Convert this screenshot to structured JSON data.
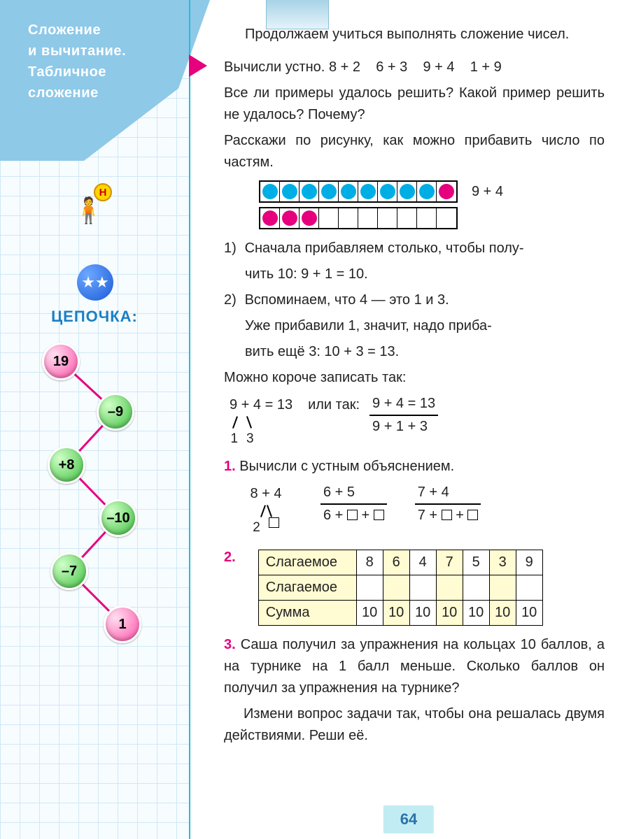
{
  "header": {
    "title_line1": "Сложение",
    "title_line2": "и вычитание.",
    "title_line3": "Табличное",
    "title_line4": "сложение"
  },
  "sidebar": {
    "chain_title": "ЦЕПОЧКА:",
    "badge_letter": "Н",
    "nodes": [
      "19",
      "–9",
      "+8",
      "–10",
      "–7",
      "1"
    ]
  },
  "intro": "Продолжаем учиться выполнять сложение чисел.",
  "mental": {
    "lead": "Вычисли устно.",
    "exprs": "8 + 2    6 + 3    9 + 4    1 + 9",
    "q1": "Все ли примеры удалось решить? Какой пример решить не удалось? Почему?",
    "q2": "Расскажи по рисунку, как можно прибавить число по частям."
  },
  "diagram": {
    "row1": [
      "blue",
      "blue",
      "blue",
      "blue",
      "blue",
      "blue",
      "blue",
      "blue",
      "blue",
      "pink"
    ],
    "row2": [
      "pink",
      "pink",
      "pink",
      "",
      "",
      "",
      "",
      "",
      "",
      ""
    ],
    "expr": "9 + 4"
  },
  "steps": {
    "s1a": "Сначала прибавляем столько, чтобы полу-",
    "s1b": "чить 10:   9 + 1 = 10.",
    "s2a": "Вспоминаем, что 4 — это 1 и 3.",
    "s2b": "Уже прибавили 1, значит, надо приба-",
    "s2c": "вить ещё 3:   10 + 3 = 13.",
    "short_lead": "Можно короче записать так:",
    "short_left_top": "9 + 4 = 13",
    "short_left_b1": "1",
    "short_left_b2": "3",
    "short_mid": "или так:",
    "short_frac_top": "9 + 4 = 13",
    "short_frac_bot": "9 + 1 + 3"
  },
  "ex1": {
    "lead": "Вычисли с устным объяснением.",
    "a_top": "8 + 4",
    "a_b1": "2",
    "b_top": "6 + 5",
    "b_bot": "6 + □ + □",
    "c_top": "7 + 4",
    "c_bot": "7 + □ + □"
  },
  "ex2": {
    "r1_label": "Слагаемое",
    "r2_label": "Слагаемое",
    "r3_label": "Сумма",
    "row1": [
      "8",
      "6",
      "4",
      "7",
      "5",
      "3",
      "9"
    ],
    "row2": [
      "",
      "",
      "",
      "",
      "",
      "",
      ""
    ],
    "row3": [
      "10",
      "10",
      "10",
      "10",
      "10",
      "10",
      "10"
    ],
    "shaded": [
      false,
      false,
      true,
      false,
      true,
      false,
      true,
      false
    ]
  },
  "ex3": {
    "p1": "Саша получил за упражнения на кольцах 10 баллов, а на турнике на 1 балл меньше. Сколько баллов он получил за упражнения на турнике?",
    "p2": "Измени вопрос задачи так, чтобы она решалась двумя действиями. Реши её."
  },
  "page_number": "64",
  "labels": {
    "n1": "1.",
    "n2": "2.",
    "n3": "3.",
    "s1": "1)",
    "s2": "2)"
  }
}
